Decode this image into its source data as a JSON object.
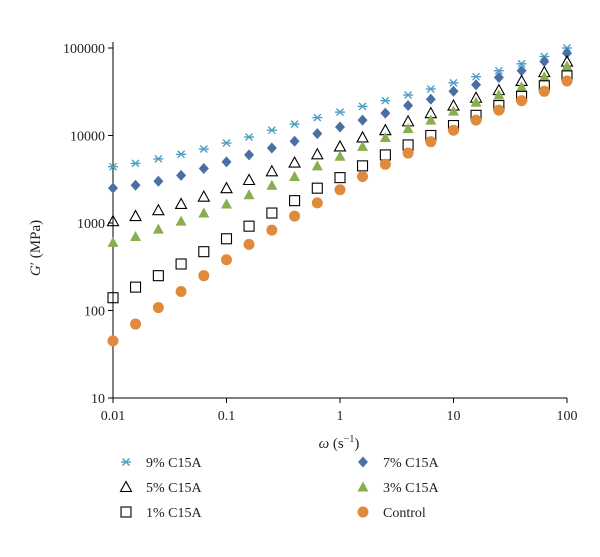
{
  "chart_data": {
    "type": "scatter",
    "x_scale": "log",
    "y_scale": "log",
    "xlim": [
      0.01,
      100
    ],
    "ylim": [
      10,
      100000
    ],
    "grid": false,
    "legend_position": "bottom",
    "x_ticks": [
      "0.01",
      "0.1",
      "1",
      "10",
      "100"
    ],
    "y_ticks": [
      "10",
      "100",
      "1000",
      "10000",
      "100000"
    ],
    "xlabel": {
      "symbol": "ω",
      "unit": " (s",
      "exp": "−1",
      "close": ")"
    },
    "ylabel": {
      "symbol": "G",
      "prime": "′",
      "unit": " (MPa)"
    },
    "x": [
      0.01,
      0.0158,
      0.0251,
      0.0398,
      0.0631,
      0.1,
      0.158,
      0.251,
      0.398,
      0.631,
      1,
      1.58,
      2.51,
      3.98,
      6.31,
      10,
      15.8,
      25.1,
      39.8,
      63.1,
      100
    ],
    "series": [
      {
        "name": "9% C15A",
        "marker": "star",
        "color": "#4f9fc4",
        "values": [
          4400,
          4800,
          5400,
          6100,
          7000,
          8200,
          9600,
          11500,
          13500,
          16000,
          18500,
          21500,
          25000,
          29000,
          34000,
          40000,
          47000,
          55000,
          66000,
          80000,
          100000
        ]
      },
      {
        "name": "7% C15A",
        "marker": "diamond",
        "color": "#4a6fa5",
        "values": [
          2500,
          2700,
          3000,
          3500,
          4200,
          5000,
          6000,
          7200,
          8600,
          10500,
          12500,
          15000,
          18000,
          22000,
          26000,
          32000,
          38000,
          46000,
          55000,
          70000,
          87000
        ]
      },
      {
        "name": "5% C15A",
        "marker": "triangle-open",
        "color": "#000000",
        "values": [
          1050,
          1200,
          1400,
          1650,
          2000,
          2500,
          3100,
          3900,
          4900,
          6100,
          7500,
          9500,
          11500,
          14500,
          18000,
          22000,
          27000,
          33000,
          42000,
          53000,
          70000
        ]
      },
      {
        "name": "3% C15A",
        "marker": "triangle",
        "color": "#8aae4c",
        "values": [
          600,
          700,
          850,
          1050,
          1300,
          1650,
          2100,
          2700,
          3400,
          4500,
          5800,
          7500,
          9500,
          12000,
          15000,
          19000,
          24000,
          29000,
          36000,
          47000,
          62000
        ]
      },
      {
        "name": "1% C15A",
        "marker": "square-open",
        "color": "#000000",
        "values": [
          140,
          185,
          250,
          340,
          470,
          660,
          920,
          1300,
          1800,
          2500,
          3300,
          4500,
          6000,
          7800,
          10000,
          13000,
          17000,
          22000,
          28000,
          37000,
          48000
        ]
      },
      {
        "name": "Control",
        "marker": "circle",
        "color": "#e08a3c",
        "values": [
          45,
          70,
          108,
          165,
          250,
          380,
          570,
          830,
          1200,
          1700,
          2400,
          3400,
          4700,
          6300,
          8500,
          11500,
          15000,
          19500,
          25000,
          32000,
          42000
        ]
      }
    ]
  }
}
